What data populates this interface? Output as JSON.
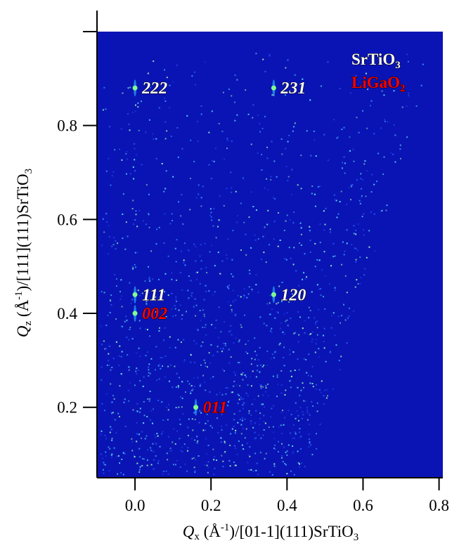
{
  "chart_data": {
    "type": "scatter",
    "xlabel": [
      "Q",
      "x",
      " (Å",
      "-1",
      ")/[01-1](111)SrTiO",
      "3"
    ],
    "ylabel": [
      "Q",
      "z",
      " (Å",
      "-1",
      ")/[111](111)SrTiO",
      "3"
    ],
    "xlim": [
      -0.1,
      0.81
    ],
    "ylim": [
      0.05,
      1.0
    ],
    "xticks": [
      {
        "value": 0,
        "label": "0.0"
      },
      0.2,
      0.4,
      0.6,
      0.8
    ],
    "yticks": [
      0.2,
      0.4,
      0.6,
      0.8
    ],
    "background": "#0a14b4",
    "legend": "top-right",
    "series": [
      {
        "name": "SrTiO3",
        "color": "#ffffff",
        "x": [
          0.0,
          0.365,
          0.0,
          0.365
        ],
        "y": [
          0.88,
          0.88,
          0.44,
          0.44
        ],
        "labels": [
          "222",
          "231",
          "111",
          "120"
        ]
      },
      {
        "name": "LiGaO2",
        "color": "#ff0000",
        "x": [
          0.0,
          0.16
        ],
        "y": [
          0.4,
          0.2
        ],
        "labels": [
          "002",
          "011"
        ]
      }
    ]
  }
}
